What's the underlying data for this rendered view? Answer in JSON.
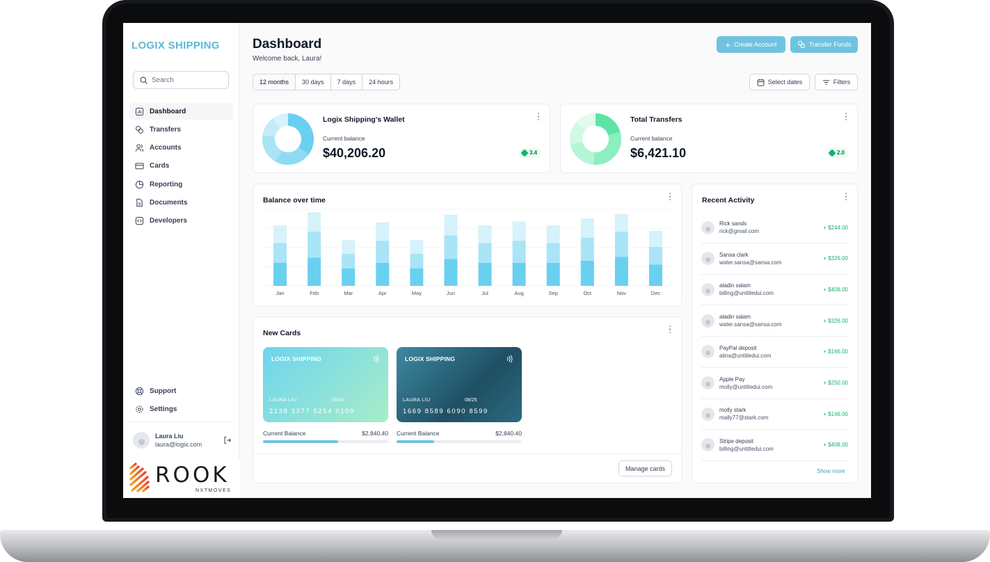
{
  "brand": {
    "name": "LOGIX SHIPPING",
    "accent": "#6fc3e0"
  },
  "search": {
    "placeholder": "Search"
  },
  "sidebar": {
    "items": [
      {
        "label": "Dashboard",
        "icon": "bar-chart-square-icon",
        "active": true
      },
      {
        "label": "Transfers",
        "icon": "coins-swap-icon"
      },
      {
        "label": "Accounts",
        "icon": "users-icon"
      },
      {
        "label": "Cards",
        "icon": "credit-card-icon"
      },
      {
        "label": "Reporting",
        "icon": "pie-chart-icon"
      },
      {
        "label": "Documents",
        "icon": "file-icon"
      },
      {
        "label": "Developers",
        "icon": "code-icon"
      }
    ],
    "bottom": [
      {
        "label": "Support",
        "icon": "life-buoy-icon"
      },
      {
        "label": "Settings",
        "icon": "gear-icon"
      }
    ]
  },
  "user": {
    "name": "Laura Liu",
    "email": "laura@logix.com"
  },
  "watermark": {
    "name": "ROOK",
    "sub": "NXTMOVES"
  },
  "header": {
    "title": "Dashboard",
    "welcome": "Welcome back, Laura!",
    "create_account": "Create Account",
    "transfer_funds": "Transfer Funds"
  },
  "filters": {
    "ranges": [
      "12 months",
      "30 days",
      "7 days",
      "24 hours"
    ],
    "active_range": "12 months",
    "select_dates": "Select dates",
    "filters": "Filters"
  },
  "stats": [
    {
      "title": "Logix Shipping's Wallet",
      "sub": "Current balance",
      "value": "$40,206.20",
      "change": "3.4"
    },
    {
      "title": "Total Transfers",
      "sub": "Current balance",
      "value": "$6,421.10",
      "change": "2.0"
    }
  ],
  "balance_chart": {
    "title": "Balance over time"
  },
  "chart_data": {
    "type": "bar",
    "stacked": true,
    "categories": [
      "Jan",
      "Feb",
      "Mar",
      "Apr",
      "May",
      "Jun",
      "Jul",
      "Aug",
      "Sep",
      "Oct",
      "Nov",
      "Dec"
    ],
    "series": [
      {
        "values": [
          30,
          37,
          23,
          30,
          23,
          35,
          30,
          30,
          30,
          33,
          38,
          28
        ]
      },
      {
        "values": [
          26,
          34,
          19,
          29,
          19,
          31,
          26,
          29,
          26,
          30,
          33,
          23
        ]
      },
      {
        "values": [
          23,
          25,
          18,
          24,
          18,
          27,
          23,
          25,
          23,
          25,
          23,
          21
        ]
      }
    ],
    "colors": [
      "#6ad0f0",
      "#a9e4f7",
      "#d6f2fb"
    ],
    "title": "Balance over time",
    "ylim": [
      0,
      100
    ],
    "grid": true
  },
  "new_cards": {
    "title": "New Cards",
    "cards": [
      {
        "brand": "LOGIX SHIPPING",
        "holder": "LAURA LIU",
        "expiry": "03/24",
        "number": "2138 3377 5254 0109",
        "balance_label": "Current Balance",
        "balance": "$2,840.40",
        "progress": 0.6
      },
      {
        "brand": "LOGIX SHIPPING",
        "holder": "LAURA LIU",
        "expiry": "08/25",
        "number": "1669 8589 6090 8599",
        "balance_label": "Current Balance",
        "balance": "$2,840.40",
        "progress": 0.3
      }
    ],
    "manage": "Manage cards"
  },
  "activity": {
    "title": "Recent Activity",
    "items": [
      {
        "name": "Rick sands",
        "email": "rick@gmail.com",
        "amount": "+ $244.00"
      },
      {
        "name": "Sansa clark",
        "email": "water.sansa@sansa.com",
        "amount": "+ $326.00"
      },
      {
        "name": "aladin salam",
        "email": "billing@untitledui.com",
        "amount": "+ $408.00"
      },
      {
        "name": "aladin  salam",
        "email": "water.sansa@sansa.com",
        "amount": "+ $326.00"
      },
      {
        "name": "PayPal deposit",
        "email": "alina@untitledui.com",
        "amount": "+ $166.00"
      },
      {
        "name": "Apple Pay",
        "email": "molly@untitledui.com",
        "amount": "+ $250.00"
      },
      {
        "name": "molly stark",
        "email": "mally77@stark.com",
        "amount": "+ $146.00"
      },
      {
        "name": "Stripe deposit",
        "email": "billing@untitledui.com",
        "amount": "+ $408.00"
      }
    ],
    "show_more": "Show more"
  }
}
